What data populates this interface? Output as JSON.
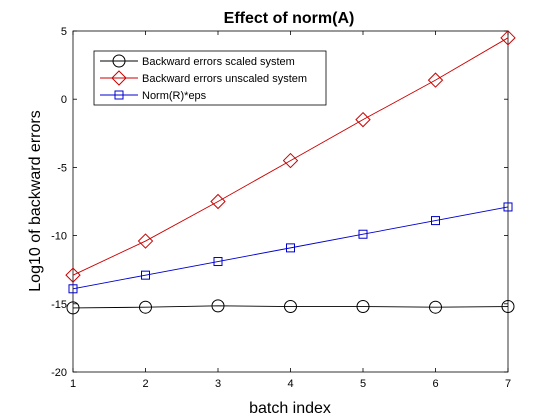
{
  "chart_data": {
    "type": "line",
    "title": "Effect of norm(A)",
    "xlabel": "batch index",
    "ylabel": "Log10 of backward errors",
    "xlim": [
      1,
      7
    ],
    "ylim": [
      -20,
      5
    ],
    "xticks": [
      1,
      2,
      3,
      4,
      5,
      6,
      7
    ],
    "yticks": [
      5,
      0,
      -5,
      -10,
      -15,
      -20
    ],
    "grid": false,
    "legend_position": "top-left",
    "x": [
      1,
      2,
      3,
      4,
      5,
      6,
      7
    ],
    "series": [
      {
        "name": "Backward errors scaled system",
        "color": "#000000",
        "marker": "circle",
        "values": [
          -15.3,
          -15.25,
          -15.15,
          -15.2,
          -15.2,
          -15.25,
          -15.2
        ]
      },
      {
        "name": "Backward errors unscaled system",
        "color": "#cc0000",
        "marker": "diamond",
        "values": [
          -12.9,
          -10.4,
          -7.5,
          -4.5,
          -1.5,
          1.4,
          4.5
        ]
      },
      {
        "name": "Norm(R)*eps",
        "color": "#0000cc",
        "marker": "square",
        "values": [
          -13.9,
          -12.9,
          -11.9,
          -10.9,
          -9.9,
          -8.9,
          -7.9
        ]
      }
    ]
  }
}
